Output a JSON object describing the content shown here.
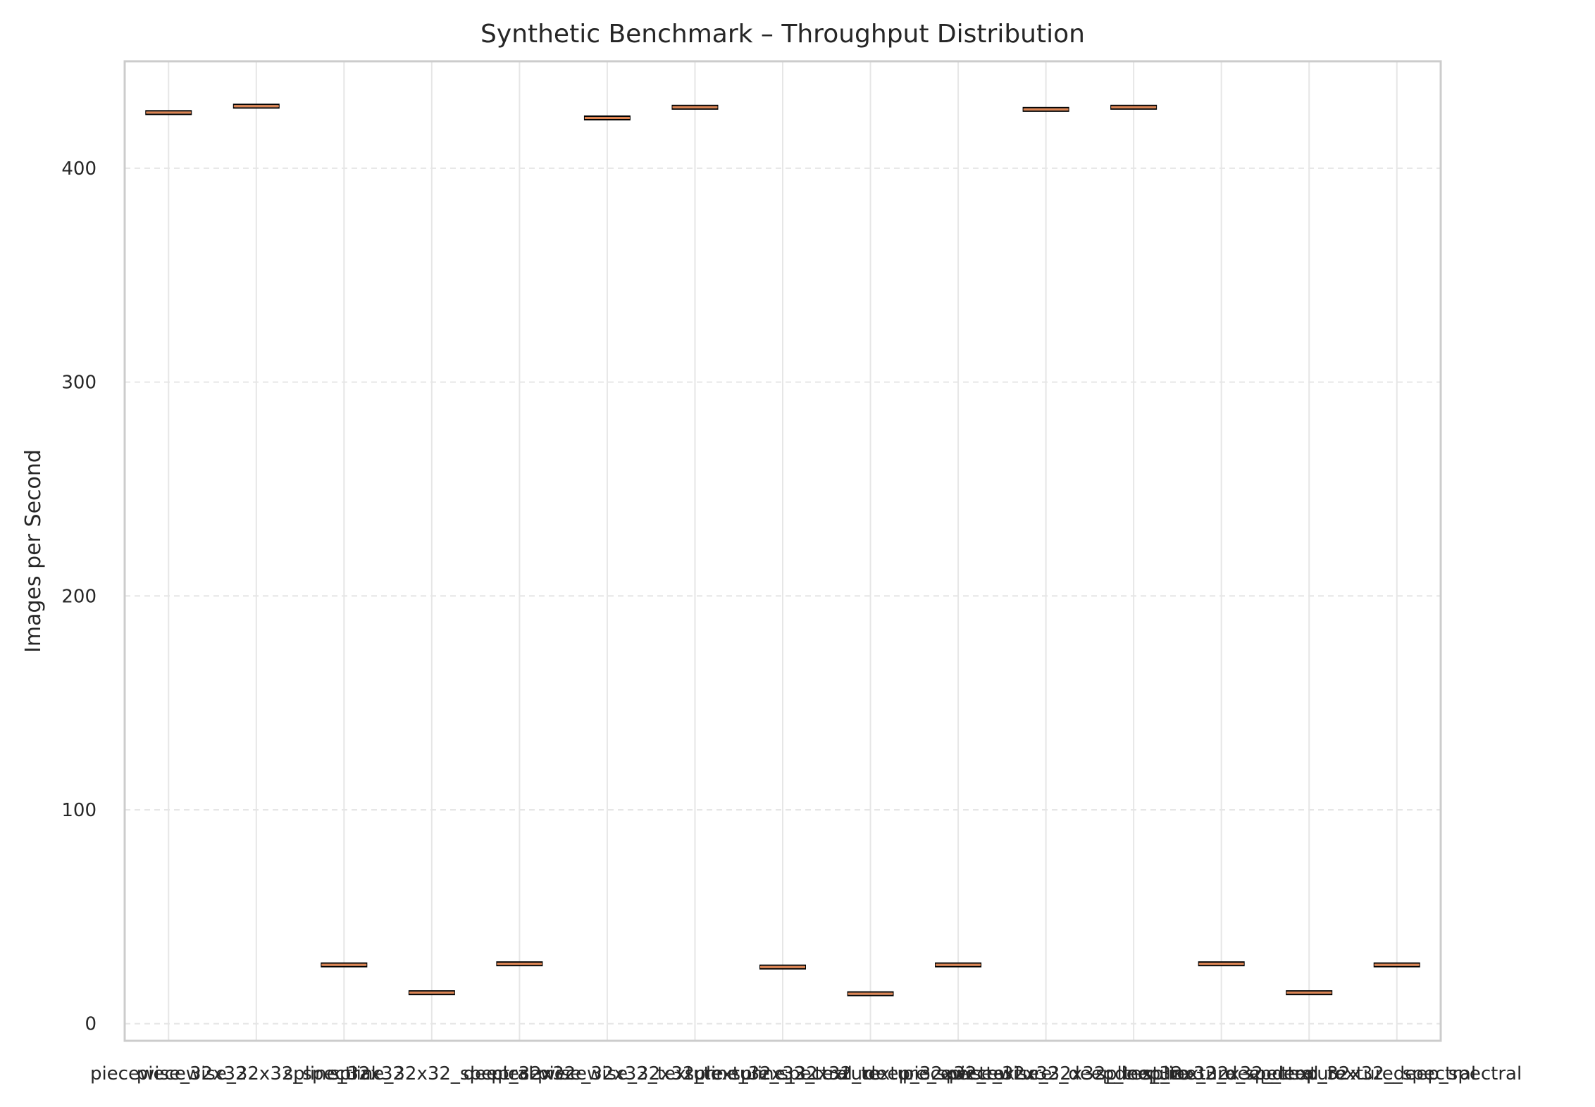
{
  "chart_data": {
    "type": "box",
    "title": "Synthetic Benchmark – Throughput Distribution",
    "xlabel": "",
    "ylabel": "Images per Second",
    "ylim": [
      -8,
      450
    ],
    "yticks": [
      0,
      100,
      200,
      300,
      400
    ],
    "grid": true,
    "legend": "none",
    "colors": {
      "median": "#dd8452",
      "box_edge": "#000000",
      "grid": "#e6e6e6",
      "frame": "#cccccc"
    },
    "categories": [
      "piecewise_32x32",
      "piecewise_32x32_spectral",
      "spline_32x32",
      "spline_32x32_spectral",
      "deep_32x32",
      "piecewise_32x32_texture",
      "piecewise_32x32_texture_spectral",
      "spline_32x32_texture",
      "spline_32x32_texture_spectral",
      "deep_32x32_texture",
      "piecewise_32x32_deep_texture",
      "piecewise_32x32_deep_texture_spectral",
      "spline_32x32_deep_texture",
      "spline_32x32_deep_texture_spectral",
      "deep_32x32_deep_spectral"
    ],
    "values": [
      426,
      429,
      27.5,
      14.5,
      28,
      423.5,
      428.5,
      26.5,
      14,
      27.5,
      427.5,
      428.5,
      28,
      14.5,
      27.5
    ]
  }
}
